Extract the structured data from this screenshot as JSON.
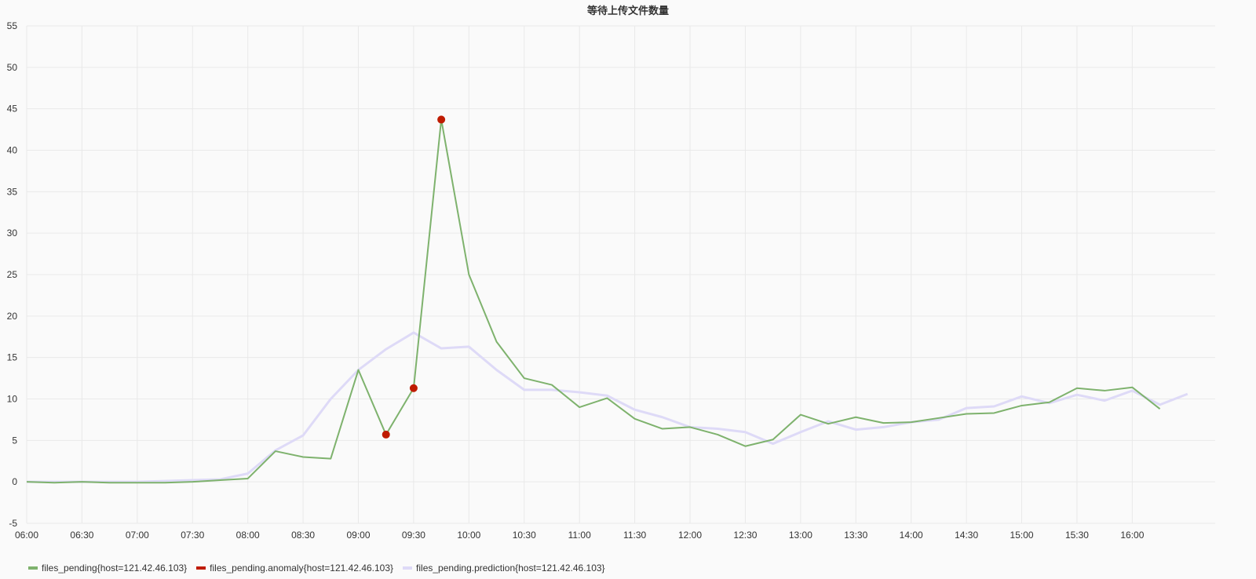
{
  "chart_data": {
    "type": "line",
    "title": "等待上传文件数量",
    "ylim": [
      -5,
      55
    ],
    "yticks": [
      "-5",
      "0",
      "5",
      "10",
      "15",
      "20",
      "25",
      "30",
      "35",
      "40",
      "45",
      "50",
      "55"
    ],
    "xticks": [
      "06:00",
      "06:30",
      "07:00",
      "07:30",
      "08:00",
      "08:30",
      "09:00",
      "09:30",
      "10:00",
      "10:30",
      "11:00",
      "11:30",
      "12:00",
      "12:30",
      "13:00",
      "13:30",
      "14:00",
      "14:30",
      "15:00",
      "15:30",
      "16:00"
    ],
    "x_start": "06:00",
    "x_end": "16:45",
    "grid": true,
    "legend_position": "bottom-left",
    "series": [
      {
        "name": "files_pending{host=121.42.46.103}",
        "color": "#7eb26d",
        "points": [
          [
            "06:00",
            0.0
          ],
          [
            "06:15",
            -0.1
          ],
          [
            "06:30",
            0.0
          ],
          [
            "06:45",
            -0.1
          ],
          [
            "07:00",
            -0.1
          ],
          [
            "07:15",
            -0.1
          ],
          [
            "07:30",
            0.0
          ],
          [
            "07:45",
            0.2
          ],
          [
            "08:00",
            0.4
          ],
          [
            "08:15",
            3.7
          ],
          [
            "08:30",
            3.0
          ],
          [
            "08:45",
            2.8
          ],
          [
            "09:00",
            13.5
          ],
          [
            "09:15",
            5.7
          ],
          [
            "09:30",
            11.3
          ],
          [
            "09:45",
            43.7
          ],
          [
            "10:00",
            25.0
          ],
          [
            "10:15",
            16.9
          ],
          [
            "10:30",
            12.5
          ],
          [
            "10:45",
            11.7
          ],
          [
            "11:00",
            9.0
          ],
          [
            "11:15",
            10.1
          ],
          [
            "11:30",
            7.6
          ],
          [
            "11:45",
            6.4
          ],
          [
            "12:00",
            6.6
          ],
          [
            "12:15",
            5.7
          ],
          [
            "12:30",
            4.3
          ],
          [
            "12:45",
            5.1
          ],
          [
            "13:00",
            8.1
          ],
          [
            "13:15",
            7.0
          ],
          [
            "13:30",
            7.8
          ],
          [
            "13:45",
            7.1
          ],
          [
            "14:00",
            7.2
          ],
          [
            "14:15",
            7.7
          ],
          [
            "14:30",
            8.2
          ],
          [
            "14:45",
            8.3
          ],
          [
            "15:00",
            9.2
          ],
          [
            "15:15",
            9.6
          ],
          [
            "15:30",
            11.3
          ],
          [
            "15:45",
            11.0
          ],
          [
            "16:00",
            11.4
          ],
          [
            "16:15",
            8.8
          ]
        ]
      },
      {
        "name": "files_pending.anomaly{host=121.42.46.103}",
        "color": "#bf1b00",
        "points": [
          [
            "09:15",
            5.7
          ],
          [
            "09:30",
            11.3
          ],
          [
            "09:45",
            43.7
          ]
        ]
      },
      {
        "name": "files_pending.prediction{host=121.42.46.103}",
        "color": "#dedaf7",
        "points": [
          [
            "06:00",
            0.0
          ],
          [
            "06:15",
            0.0
          ],
          [
            "06:30",
            0.0
          ],
          [
            "06:45",
            0.0
          ],
          [
            "07:00",
            0.0
          ],
          [
            "07:15",
            0.1
          ],
          [
            "07:30",
            0.2
          ],
          [
            "07:45",
            0.3
          ],
          [
            "08:00",
            1.0
          ],
          [
            "08:15",
            3.8
          ],
          [
            "08:30",
            5.6
          ],
          [
            "08:45",
            10.0
          ],
          [
            "09:00",
            13.5
          ],
          [
            "09:15",
            16.0
          ],
          [
            "09:30",
            18.0
          ],
          [
            "09:45",
            16.1
          ],
          [
            "10:00",
            16.3
          ],
          [
            "10:15",
            13.5
          ],
          [
            "10:30",
            11.1
          ],
          [
            "10:45",
            11.1
          ],
          [
            "11:00",
            10.8
          ],
          [
            "11:15",
            10.4
          ],
          [
            "11:30",
            8.7
          ],
          [
            "11:45",
            7.8
          ],
          [
            "12:00",
            6.6
          ],
          [
            "12:15",
            6.4
          ],
          [
            "12:30",
            6.0
          ],
          [
            "12:45",
            4.6
          ],
          [
            "13:00",
            6.0
          ],
          [
            "13:15",
            7.3
          ],
          [
            "13:30",
            6.3
          ],
          [
            "13:45",
            6.6
          ],
          [
            "14:00",
            7.2
          ],
          [
            "14:15",
            7.5
          ],
          [
            "14:30",
            8.9
          ],
          [
            "14:45",
            9.1
          ],
          [
            "15:00",
            10.3
          ],
          [
            "15:15",
            9.5
          ],
          [
            "15:30",
            10.5
          ],
          [
            "15:45",
            9.8
          ],
          [
            "16:00",
            11.0
          ],
          [
            "16:15",
            9.3
          ],
          [
            "16:30",
            10.6
          ]
        ]
      }
    ]
  }
}
